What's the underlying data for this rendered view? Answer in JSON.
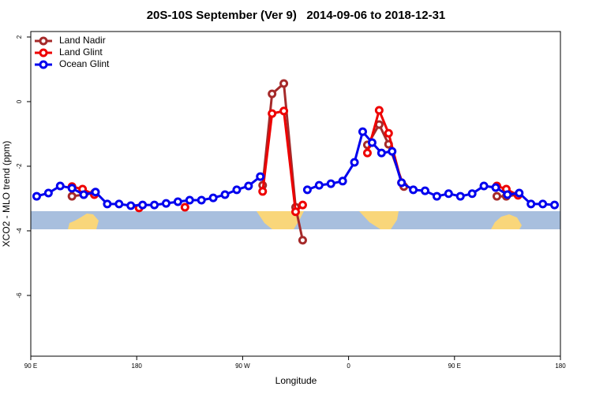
{
  "chart_data": {
    "type": "line",
    "title": "20S-10S September (Ver 9)   2014-09-06 to 2018-12-31",
    "x_label": "Longitude",
    "y_label": "XCO2 - MLO trend (ppm)",
    "xlim": [
      90,
      540
    ],
    "xticks": [
      {
        "value": 90,
        "label": "90 E"
      },
      {
        "value": 180,
        "label": "180"
      },
      {
        "value": 270,
        "label": "90 W"
      },
      {
        "value": 360,
        "label": "0"
      },
      {
        "value": 450,
        "label": "90 E"
      },
      {
        "value": 540,
        "label": "180"
      }
    ],
    "ylim": [
      -7.88,
      2.17
    ],
    "yticks": [
      -6,
      -4,
      -2,
      0,
      2
    ],
    "legend": "top-left",
    "series": [
      {
        "name": "Land Nadir",
        "color": "#a52a2a",
        "x": [
          125,
          135,
          144,
          null,
          287,
          295,
          305,
          315,
          321,
          null,
          376,
          386,
          394,
          407,
          null,
          486,
          494,
          504
        ],
        "values": [
          -2.93,
          -2.88,
          -2.83,
          null,
          -2.59,
          0.24,
          0.56,
          -3.27,
          -4.29,
          null,
          -1.34,
          -0.71,
          -1.32,
          -2.63,
          null,
          -2.93,
          -2.93,
          -2.88
        ]
      },
      {
        "name": "Land Glint",
        "color": "#ee0000",
        "x": [
          125,
          134,
          144,
          null,
          182,
          null,
          221,
          null,
          287,
          295,
          305,
          315,
          321,
          null,
          376,
          386,
          394,
          405,
          null,
          486,
          494,
          504
        ],
        "values": [
          -2.63,
          -2.71,
          -2.88,
          null,
          -3.29,
          null,
          -3.27,
          null,
          -2.78,
          -0.37,
          -0.29,
          -3.41,
          -3.2,
          null,
          -1.59,
          -0.27,
          -0.98,
          -2.51,
          null,
          -2.61,
          -2.71,
          -2.9
        ]
      },
      {
        "name": "Ocean Glint",
        "color": "#0000ee",
        "x": [
          95,
          105,
          115,
          125,
          135,
          145,
          155,
          165,
          175,
          185,
          195,
          205,
          215,
          225,
          235,
          245,
          255,
          265,
          275,
          285,
          null,
          325,
          335,
          345,
          355,
          365,
          372,
          380,
          388,
          397,
          405,
          415,
          425,
          435,
          445,
          455,
          465,
          475,
          485,
          495,
          505,
          515,
          525,
          535
        ],
        "values": [
          -2.93,
          -2.83,
          -2.61,
          -2.68,
          -2.88,
          -2.8,
          -3.17,
          -3.17,
          -3.22,
          -3.2,
          -3.2,
          -3.15,
          -3.1,
          -3.05,
          -3.05,
          -2.98,
          -2.88,
          -2.73,
          -2.61,
          -2.32,
          null,
          -2.73,
          -2.59,
          -2.54,
          -2.46,
          -1.88,
          -0.93,
          -1.27,
          -1.59,
          -1.54,
          -2.51,
          -2.73,
          -2.76,
          -2.93,
          -2.85,
          -2.93,
          -2.85,
          -2.61,
          -2.66,
          -2.88,
          -2.83,
          -3.17,
          -3.17,
          -3.2
        ]
      }
    ]
  }
}
